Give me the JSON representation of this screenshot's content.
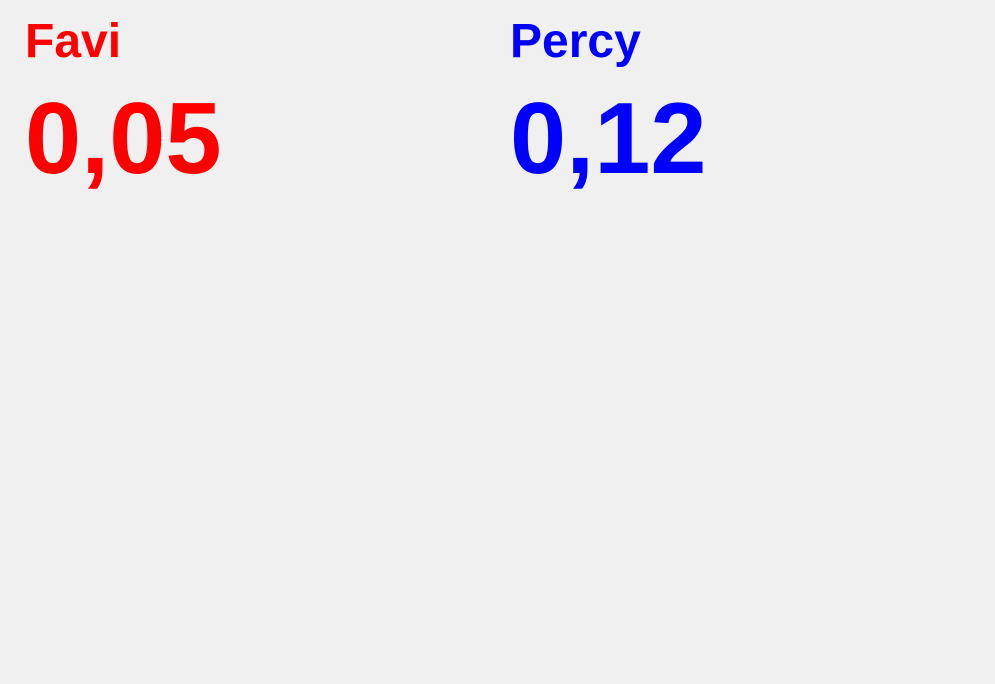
{
  "panels": [
    {
      "label": "Favi",
      "value": "0,05",
      "color": "#ff0000"
    },
    {
      "label": "Percy",
      "value": "0,12",
      "color": "#0000ff"
    }
  ]
}
